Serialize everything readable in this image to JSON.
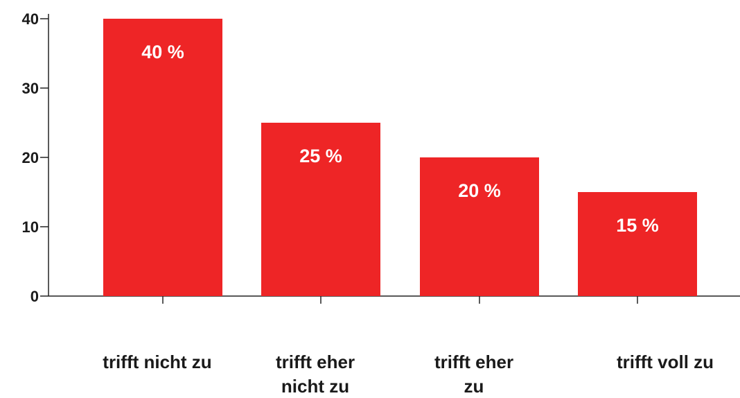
{
  "chart_data": {
    "type": "bar",
    "categories": [
      "trifft nicht zu",
      "trifft eher\nnicht zu",
      "trifft eher\nzu",
      "trifft voll zu"
    ],
    "values": [
      40,
      25,
      20,
      15
    ],
    "value_labels": [
      "40 %",
      "25 %",
      "20 %",
      "15 %"
    ],
    "color": "#ee2526",
    "ylim": [
      0,
      40
    ],
    "yticks": [
      0,
      10,
      20,
      30,
      40
    ],
    "grid": false
  }
}
